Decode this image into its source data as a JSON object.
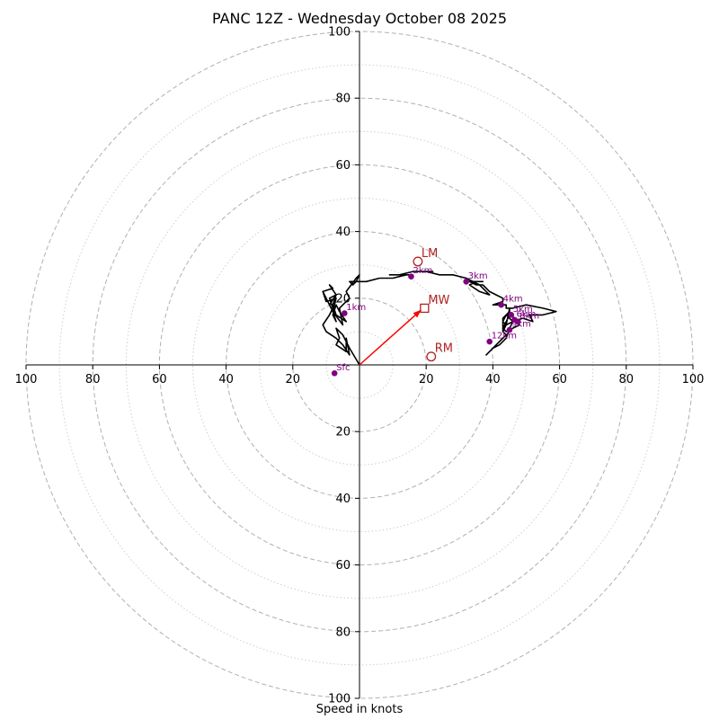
{
  "title": "PANC 12Z - Wednesday October 08 2025",
  "chart_data": {
    "type": "hodograph",
    "title": "PANC 12Z - Wednesday October 08 2025",
    "xlabel": "Speed in knots",
    "ylabel": "",
    "xlim": [
      -100,
      100
    ],
    "ylim": [
      -100,
      100
    ],
    "x_ticks": [
      -100,
      -80,
      -60,
      -40,
      -20,
      20,
      40,
      60,
      80,
      100
    ],
    "y_ticks": [
      -100,
      -80,
      -60,
      -40,
      -20,
      20,
      40,
      60,
      80,
      100
    ],
    "x_tick_labels": [
      "100",
      "80",
      "60",
      "40",
      "20",
      "20",
      "40",
      "60",
      "80",
      "100"
    ],
    "y_tick_labels": [
      "100",
      "80",
      "60",
      "40",
      "20",
      "20",
      "40",
      "60",
      "80",
      "100"
    ],
    "rings_major": [
      20,
      40,
      60,
      80,
      100
    ],
    "rings_minor": [
      10,
      30,
      50,
      70,
      90
    ],
    "grid": true,
    "colors": {
      "trace": "#000000",
      "height_markers": "#800080",
      "motion": "#b22222",
      "mean_wind_vector": "#ff0000",
      "grid": "#b0b0b0"
    },
    "trace": [
      [
        0,
        0
      ],
      [
        -3,
        5
      ],
      [
        -5,
        9
      ],
      [
        -7,
        11
      ],
      [
        -6,
        8
      ],
      [
        -7,
        6
      ],
      [
        -4,
        4
      ],
      [
        -4,
        8
      ],
      [
        -3,
        3
      ],
      [
        -5,
        6
      ],
      [
        -7,
        8
      ],
      [
        -10,
        10
      ],
      [
        -11,
        12
      ],
      [
        -9,
        15
      ],
      [
        -8,
        17
      ],
      [
        -9,
        20
      ],
      [
        -7,
        21
      ],
      [
        -8,
        18
      ],
      [
        -7,
        15
      ],
      [
        -4,
        13
      ],
      [
        -6,
        16
      ],
      [
        -7,
        18
      ],
      [
        -8,
        15
      ],
      [
        -7,
        13
      ],
      [
        -8,
        16
      ],
      [
        -7,
        20
      ],
      [
        -10,
        19
      ],
      [
        -11,
        22
      ],
      [
        -8,
        23
      ],
      [
        -9,
        24
      ],
      [
        -7,
        21
      ],
      [
        -9,
        18
      ],
      [
        -11,
        22
      ],
      [
        -8,
        16
      ],
      [
        -5,
        12
      ],
      [
        -6,
        17
      ],
      [
        -3,
        20
      ],
      [
        -4,
        22
      ],
      [
        -1,
        26
      ],
      [
        0,
        27
      ],
      [
        -1,
        25
      ],
      [
        -2,
        24
      ],
      [
        -3,
        25
      ],
      [
        -2,
        25
      ],
      [
        -1,
        25
      ],
      [
        0,
        25
      ],
      [
        2,
        25
      ],
      [
        6,
        26
      ],
      [
        10,
        26
      ],
      [
        14,
        27
      ],
      [
        16,
        27
      ],
      [
        12,
        27
      ],
      [
        9,
        27
      ],
      [
        12,
        27
      ],
      [
        16,
        28
      ],
      [
        19,
        28
      ],
      [
        22,
        28
      ],
      [
        20,
        28
      ],
      [
        17,
        28
      ],
      [
        20,
        28
      ],
      [
        24,
        27
      ],
      [
        28,
        27
      ],
      [
        32,
        26
      ],
      [
        36,
        24
      ],
      [
        38,
        22
      ],
      [
        39,
        21
      ],
      [
        36,
        22
      ],
      [
        33,
        24
      ],
      [
        35,
        25
      ],
      [
        37,
        25
      ],
      [
        35,
        25
      ],
      [
        33,
        25
      ],
      [
        35,
        24
      ],
      [
        37,
        24
      ],
      [
        39,
        22
      ],
      [
        41,
        21
      ],
      [
        43,
        20
      ],
      [
        43,
        19
      ],
      [
        40,
        18
      ],
      [
        42,
        18
      ],
      [
        44,
        18
      ],
      [
        44,
        17
      ],
      [
        46,
        17
      ],
      [
        50,
        18
      ],
      [
        55,
        17
      ],
      [
        59,
        16
      ],
      [
        55,
        15
      ],
      [
        51,
        15
      ],
      [
        52,
        13
      ],
      [
        49,
        14
      ],
      [
        46,
        13
      ],
      [
        44,
        12
      ],
      [
        43,
        11
      ],
      [
        45,
        15
      ],
      [
        45,
        17
      ],
      [
        44,
        12
      ],
      [
        43,
        11
      ],
      [
        44,
        10
      ],
      [
        46,
        11
      ],
      [
        48,
        12
      ],
      [
        47,
        14
      ],
      [
        44,
        15
      ],
      [
        46,
        13
      ],
      [
        45,
        11
      ],
      [
        44,
        8
      ],
      [
        42,
        6
      ],
      [
        40,
        5
      ],
      [
        38,
        3
      ],
      [
        40,
        5
      ],
      [
        42,
        7
      ],
      [
        44,
        9
      ],
      [
        43,
        10
      ],
      [
        44,
        12
      ],
      [
        43,
        13
      ],
      [
        44,
        15
      ],
      [
        45,
        16
      ],
      [
        43,
        14
      ],
      [
        43,
        10
      ],
      [
        44,
        12
      ]
    ],
    "height_markers": [
      {
        "label": "Sfc",
        "u": -7.5,
        "v": -2.5
      },
      {
        "label": "1km",
        "u": -4.5,
        "v": 15.5
      },
      {
        "label": "2km",
        "u": 15.5,
        "v": 26.5
      },
      {
        "label": "3km",
        "u": 32.0,
        "v": 25.0
      },
      {
        "label": "4km",
        "u": 42.5,
        "v": 18.0
      },
      {
        "label": "5km",
        "u": 45.5,
        "v": 15.0
      },
      {
        "label": "6km",
        "u": 46.5,
        "v": 13.5
      },
      {
        "label": "8km",
        "u": 47.5,
        "v": 13.0
      },
      {
        "label": "9km",
        "u": 45.0,
        "v": 10.5
      },
      {
        "label": "12km",
        "u": 39.0,
        "v": 7.0
      }
    ],
    "storm_motion": [
      {
        "label": "LM",
        "u": 17.5,
        "v": 31.0,
        "marker": "circle"
      },
      {
        "label": "MW",
        "u": 19.5,
        "v": 17.0,
        "marker": "square"
      },
      {
        "label": "RM",
        "u": 21.5,
        "v": 2.5,
        "marker": "circle"
      }
    ],
    "mean_wind_vector": {
      "from": [
        0,
        0
      ],
      "to": [
        18.5,
        16.5
      ]
    }
  }
}
